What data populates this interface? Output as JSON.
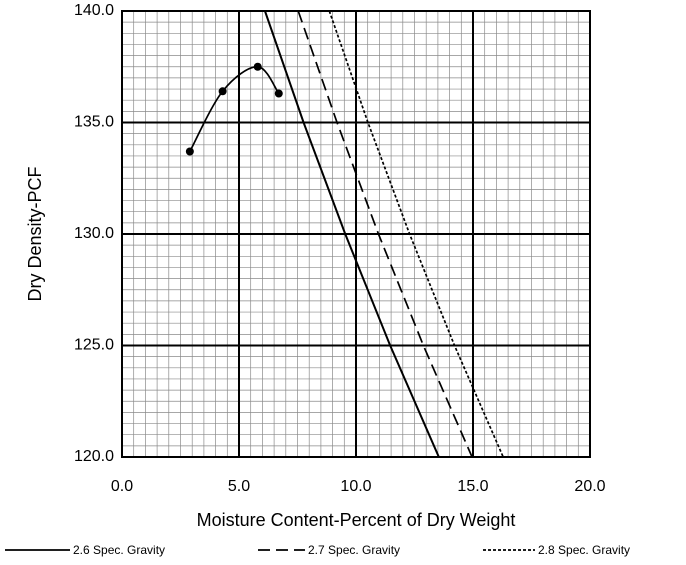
{
  "chart_data": {
    "type": "line",
    "xlabel": "Moisture Content-Percent of Dry Weight",
    "ylabel": "Dry Density-PCF",
    "xlim": [
      0,
      20
    ],
    "ylim": [
      120,
      140
    ],
    "xticks": [
      {
        "value": 0,
        "label": "0.0"
      },
      {
        "value": 5,
        "label": "5.0"
      },
      {
        "value": 10,
        "label": "10.0"
      },
      {
        "value": 15,
        "label": "15.0"
      },
      {
        "value": 20,
        "label": "20.0"
      }
    ],
    "yticks": [
      {
        "value": 120,
        "label": "120.0"
      },
      {
        "value": 125,
        "label": "125.0"
      },
      {
        "value": 130,
        "label": "130.0"
      },
      {
        "value": 135,
        "label": "135.0"
      },
      {
        "value": 140,
        "label": "140.0"
      }
    ],
    "grid": true,
    "minor_grid": true,
    "legend": "bottom",
    "series": [
      {
        "x": [
          2.9,
          4.3,
          5.8,
          6.7
        ],
        "values": [
          133.7,
          136.4,
          137.5,
          136.3
        ],
        "color": "#000000",
        "marker": "circle",
        "smooth": true
      },
      {
        "name": "2.6 Spec. Gravity",
        "x": [
          6.11,
          7.76,
          9.54,
          11.46,
          13.54
        ],
        "values": [
          140,
          135,
          130,
          125,
          120
        ],
        "color": "#000000",
        "dash": "solid"
      },
      {
        "name": "2.7 Spec. Gravity",
        "x": [
          7.53,
          9.19,
          10.96,
          12.88,
          14.96
        ],
        "values": [
          140,
          135,
          130,
          125,
          120
        ],
        "color": "#000000",
        "dash": "dashed"
      },
      {
        "name": "2.8 Spec. Gravity",
        "x": [
          8.86,
          10.51,
          12.29,
          14.21,
          16.29
        ],
        "values": [
          140,
          135,
          130,
          125,
          120
        ],
        "color": "#000000",
        "dash": "dotted"
      }
    ]
  }
}
